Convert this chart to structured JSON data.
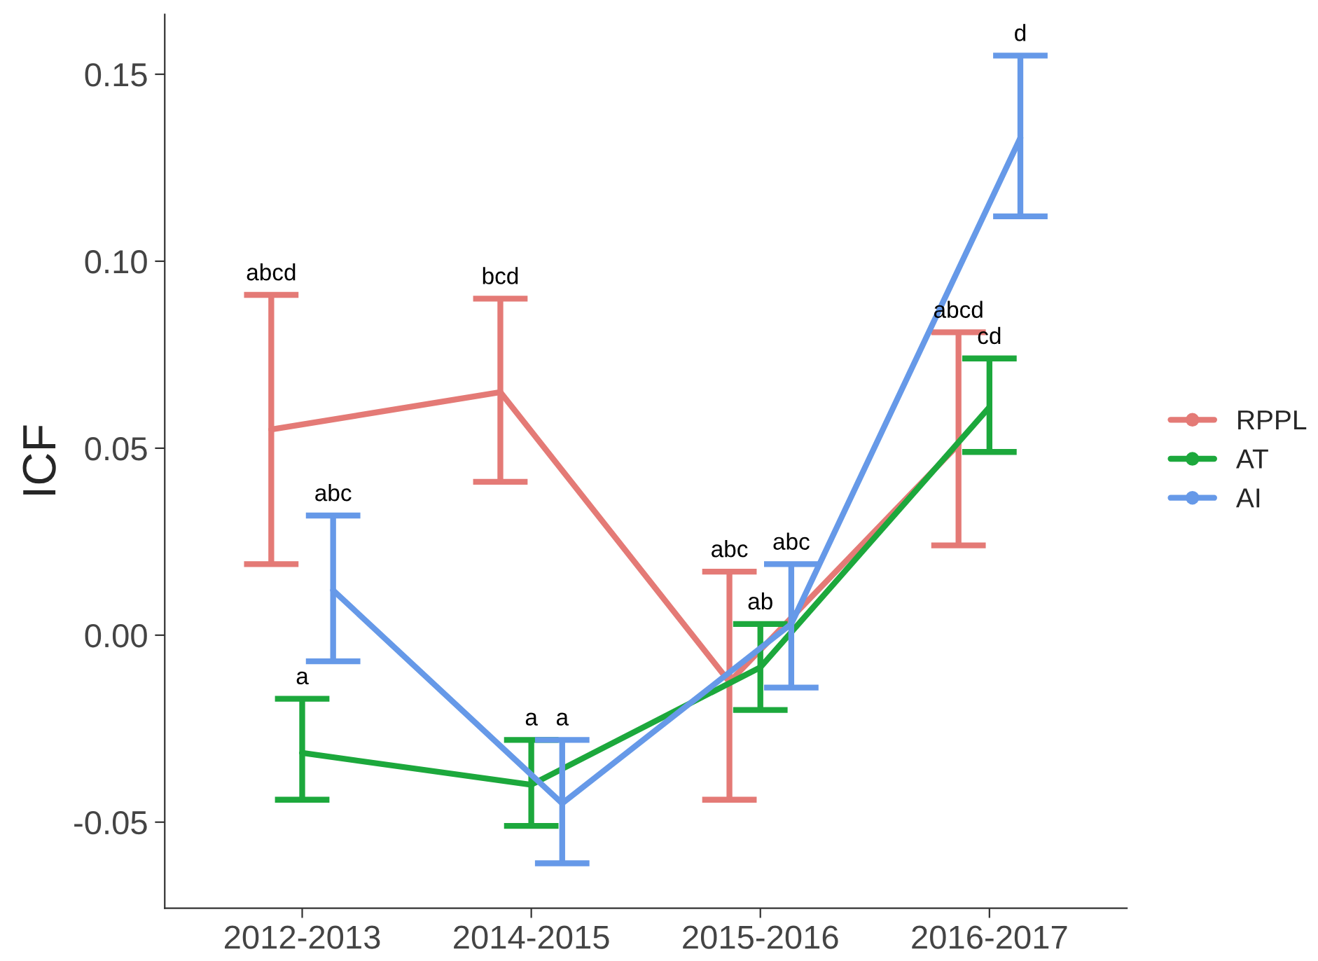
{
  "chart_data": {
    "type": "line",
    "ylabel": "ICF",
    "categories": [
      "2012-2013",
      "2014-2015",
      "2015-2016",
      "2016-2017"
    ],
    "series": [
      {
        "name": "RPPL",
        "color": "#e47a76",
        "values": [
          0.055,
          0.065,
          -0.0125,
          0.051
        ],
        "errors": [
          [
            0.019,
            0.091
          ],
          [
            0.041,
            0.09
          ],
          [
            -0.044,
            0.017
          ],
          [
            0.024,
            0.081
          ]
        ]
      },
      {
        "name": "AT",
        "color": "#1ca83c",
        "values": [
          -0.0315,
          -0.04,
          -0.0086,
          0.061
        ],
        "errors": [
          [
            -0.044,
            -0.017
          ],
          [
            -0.051,
            -0.028
          ],
          [
            -0.02,
            0.003
          ],
          [
            0.049,
            0.074
          ]
        ]
      },
      {
        "name": "AI",
        "color": "#6699e8",
        "values": [
          0.012,
          -0.045,
          0.003,
          0.133
        ],
        "errors": [
          [
            -0.007,
            0.032
          ],
          [
            -0.061,
            -0.028
          ],
          [
            -0.014,
            0.019
          ],
          [
            0.112,
            0.155
          ]
        ]
      }
    ],
    "ylim": [
      -0.073,
      0.166
    ],
    "yticks": [
      {
        "value": -0.05,
        "label": "-0.05"
      },
      {
        "value": 0.0,
        "label": "0.00"
      },
      {
        "value": 0.05,
        "label": "0.05"
      },
      {
        "value": 0.1,
        "label": "0.10"
      },
      {
        "value": 0.15,
        "label": "0.15"
      }
    ],
    "annotations": [
      {
        "text": "abcd",
        "x": "2012-2013",
        "y": 0.091
      },
      {
        "text": "bcd",
        "x": "2014-2015",
        "y": 0.09
      },
      {
        "text": "abc",
        "x": "2015-2016",
        "y": 0.017
      },
      {
        "text": "abcd",
        "x": "2016-2017",
        "y": 0.081
      },
      {
        "text": "a",
        "x": "2012-2013",
        "y": -0.017
      },
      {
        "text": "a",
        "x": "2014-2015",
        "y": -0.028
      },
      {
        "text": "ab",
        "x": "2015-2016",
        "y": 0.003
      },
      {
        "text": "cd",
        "x": "2016-2017",
        "y": 0.074
      },
      {
        "text": "abc",
        "x": "2012-2013",
        "y": 0.032
      },
      {
        "text": "a",
        "x": "2014-2015",
        "y": -0.028
      },
      {
        "text": "abc",
        "x": "2015-2016",
        "y": 0.019
      },
      {
        "text": "d",
        "x": "2016-2017",
        "y": 0.155
      }
    ],
    "grid": false,
    "legend": "right",
    "marker": "circle",
    "line_style": "solid"
  }
}
